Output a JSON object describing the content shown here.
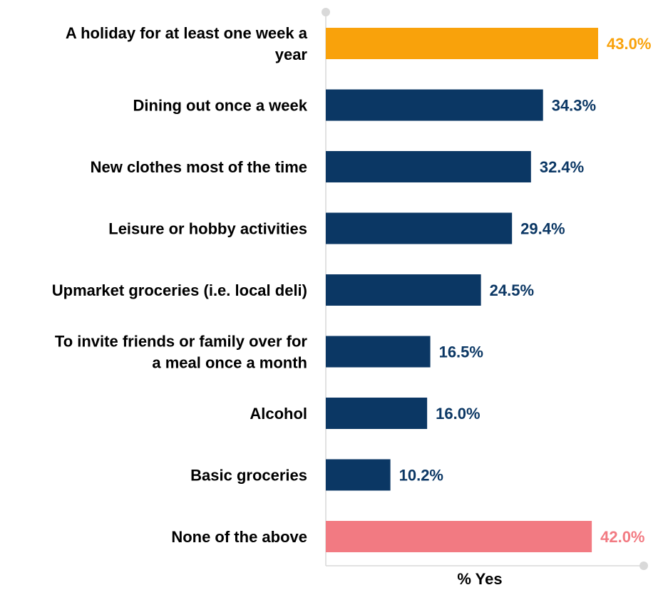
{
  "chart_data": {
    "type": "bar",
    "orientation": "horizontal",
    "categories": [
      "A holiday for at least one week a year",
      "Dining out once a week",
      "New clothes most of the time",
      "Leisure or hobby activities",
      "Upmarket groceries (i.e. local deli)",
      "To invite friends or family over for a meal once a month",
      "Alcohol",
      "Basic groceries",
      "None of the above"
    ],
    "category_lines": [
      [
        "A holiday for at least one week a",
        "year"
      ],
      [
        "Dining out once a week"
      ],
      [
        "New clothes most of the time"
      ],
      [
        "Leisure or hobby activities"
      ],
      [
        "Upmarket groceries (i.e. local deli)"
      ],
      [
        "To invite friends or family over for",
        "a meal once a month"
      ],
      [
        "Alcohol"
      ],
      [
        "Basic groceries"
      ],
      [
        "None of the above"
      ]
    ],
    "values": [
      43.0,
      34.3,
      32.4,
      29.4,
      24.5,
      16.5,
      16.0,
      10.2,
      42.0
    ],
    "value_labels": [
      "43.0%",
      "34.3%",
      "32.4%",
      "29.4%",
      "24.5%",
      "16.5%",
      "16.0%",
      "10.2%",
      "42.0%"
    ],
    "bar_colors": [
      "#F9A20B",
      "#0B3764",
      "#0B3764",
      "#0B3764",
      "#0B3764",
      "#0B3764",
      "#0B3764",
      "#0B3764",
      "#F27A82"
    ],
    "label_colors": [
      "#F9A20B",
      "#0B3764",
      "#0B3764",
      "#0B3764",
      "#0B3764",
      "#0B3764",
      "#0B3764",
      "#0B3764",
      "#F27A82"
    ],
    "xlabel": "% Yes",
    "ylabel": "",
    "title": "",
    "xlim": [
      0,
      50
    ],
    "grid": false,
    "legend": "none"
  }
}
